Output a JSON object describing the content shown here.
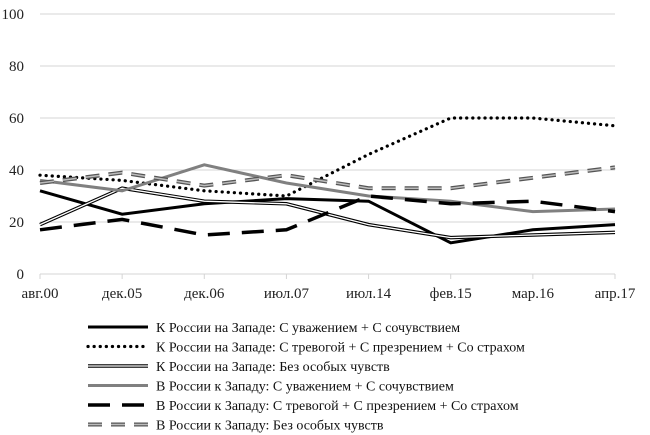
{
  "chart_data": {
    "type": "line",
    "title": "",
    "xlabel": "",
    "ylabel": "",
    "ylim": [
      0,
      100
    ],
    "yticks": [
      0,
      20,
      40,
      60,
      80,
      100
    ],
    "grid": true,
    "legend_position": "bottom",
    "categories": [
      "авг.00",
      "дек.05",
      "дек.06",
      "июл.07",
      "июл.14",
      "фев.15",
      "мар.16",
      "апр.17"
    ],
    "series": [
      {
        "name": "К России на Западе: С уважением + С сочувствием",
        "style": "solid-black",
        "color": "#000000",
        "values": [
          32,
          23,
          27,
          29,
          28,
          12,
          17,
          19
        ]
      },
      {
        "name": "К России на Западе: С тревогой + С презрением + Со страхом",
        "style": "dotted-black",
        "color": "#000000",
        "values": [
          38,
          36,
          32,
          30,
          46,
          60,
          60,
          57
        ]
      },
      {
        "name": "К России на Западе: Без особых чувств",
        "style": "double-thin",
        "color": "#000000",
        "values": [
          19,
          33,
          28,
          27,
          19,
          14,
          15,
          16
        ]
      },
      {
        "name": "В России к Западу: С уважением + С сочувствием",
        "style": "solid-gray",
        "color": "#808080",
        "values": [
          36,
          32,
          42,
          35,
          30,
          28,
          24,
          25
        ]
      },
      {
        "name": "В России к Западу: С тревогой + С презрением + Со страхом",
        "style": "dashed-black",
        "color": "#000000",
        "values": [
          17,
          21,
          15,
          17,
          30,
          27,
          28,
          24
        ]
      },
      {
        "name": "В России к Западу: Без особых чувств",
        "style": "dashed-gray",
        "color": "#808080",
        "values": [
          35,
          39,
          34,
          38,
          33,
          33,
          37,
          41
        ]
      }
    ]
  }
}
